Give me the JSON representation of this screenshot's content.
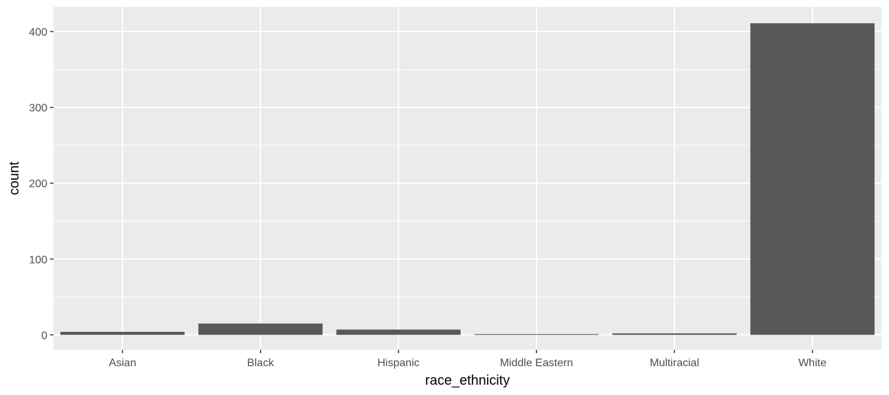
{
  "chart_data": {
    "type": "bar",
    "categories": [
      "Asian",
      "Black",
      "Hispanic",
      "Middle Eastern",
      "Multiracial",
      "White"
    ],
    "values": [
      4,
      15,
      7,
      1,
      2,
      411
    ],
    "title": "",
    "xlabel": "race_ethnicity",
    "ylabel": "count",
    "ylim": [
      -19.6,
      432.6
    ],
    "yticks": [
      0,
      100,
      200,
      300,
      400
    ],
    "grid": true,
    "legend": "none",
    "colors": {
      "panel": "#EBEBEB",
      "grid": "#FFFFFF",
      "bar": "#595959",
      "tick_text": "#4D4D4D",
      "axis_title": "#000000"
    }
  }
}
